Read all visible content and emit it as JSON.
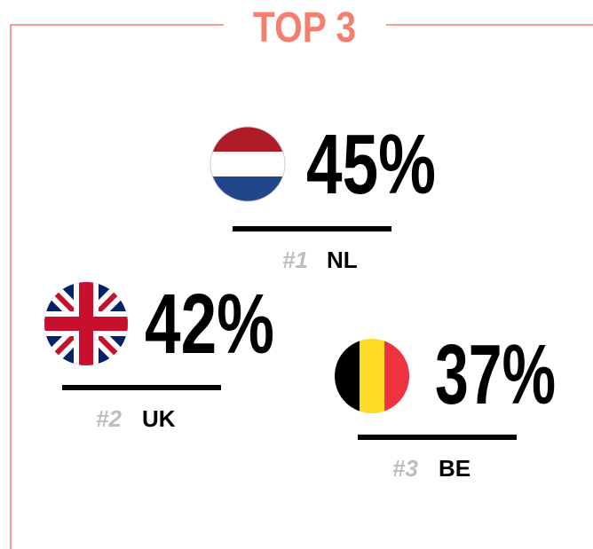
{
  "title": "TOP 3",
  "items": [
    {
      "rank": "#1",
      "country": "NL",
      "value": "45%"
    },
    {
      "rank": "#2",
      "country": "UK",
      "value": "42%"
    },
    {
      "rank": "#3",
      "country": "BE",
      "value": "37%"
    }
  ]
}
